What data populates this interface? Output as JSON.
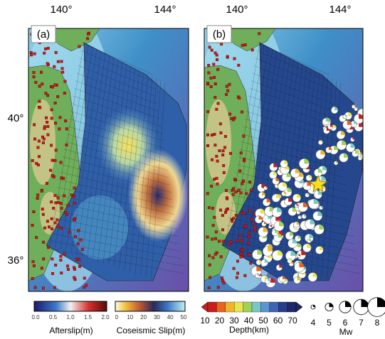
{
  "panels": [
    {
      "label": "(a)",
      "lon_labels": [
        "140°",
        "144°"
      ],
      "lat_labels": [
        "40°",
        "36°"
      ]
    },
    {
      "label": "(b)",
      "lon_labels": [
        "140°",
        "144°"
      ]
    }
  ],
  "colorbars": {
    "afterslip": {
      "ticks": [
        "0.0",
        "0.5",
        "1.0",
        "1.5",
        "2.0"
      ],
      "title": "Afterslip(m)"
    },
    "coseismic": {
      "ticks": [
        "0",
        "10",
        "20",
        "30",
        "40",
        "50"
      ],
      "title": "Coseismic Slip(m)"
    },
    "depth": {
      "ticks": [
        "10",
        "20",
        "30",
        "40",
        "50",
        "60",
        "70"
      ],
      "title": "Depth(km)"
    }
  },
  "magnitude": {
    "ticks": [
      "4",
      "5",
      "6",
      "7",
      "8"
    ],
    "title": "Mw"
  }
}
